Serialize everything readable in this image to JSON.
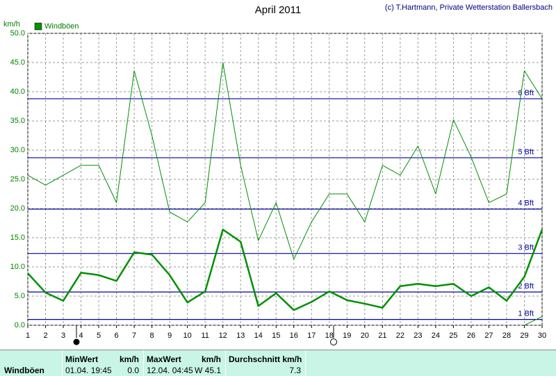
{
  "chart_data": {
    "type": "line",
    "title": "April 2011",
    "subtitle": "(c) T.Hartmann, Private Wetterstation Ballersbach",
    "y_label": "km/h",
    "x": [
      1,
      2,
      3,
      4,
      5,
      6,
      7,
      8,
      9,
      10,
      11,
      12,
      13,
      14,
      15,
      16,
      17,
      18,
      19,
      20,
      21,
      22,
      23,
      24,
      25,
      26,
      27,
      28,
      29,
      30
    ],
    "xlim": [
      1,
      30
    ],
    "xticks": [
      1,
      2,
      3,
      4,
      5,
      6,
      7,
      8,
      9,
      10,
      11,
      12,
      13,
      14,
      15,
      16,
      17,
      18,
      19,
      20,
      21,
      22,
      23,
      24,
      25,
      26,
      27,
      28,
      29,
      30
    ],
    "ylim": [
      0,
      50
    ],
    "yticks": [
      {
        "value": 0,
        "label": "0.0"
      },
      {
        "value": 5,
        "label": "5.0"
      },
      {
        "value": 10,
        "label": "10.0"
      },
      {
        "value": 15,
        "label": "15.0"
      },
      {
        "value": 20,
        "label": "20.0"
      },
      {
        "value": 25,
        "label": "25.0"
      },
      {
        "value": 30,
        "label": "30.0"
      },
      {
        "value": 35,
        "label": "35.0"
      },
      {
        "value": 40,
        "label": "40.0"
      },
      {
        "value": 45,
        "label": "45.0"
      },
      {
        "value": 50,
        "label": "50.0"
      }
    ],
    "grid": true,
    "legend": "top-left",
    "series": [
      {
        "name": "Windböen",
        "color": "#009000",
        "width": 1,
        "values": [
          25.7,
          24.0,
          25.7,
          27.4,
          27.4,
          21.0,
          43.6,
          32.5,
          19.4,
          17.7,
          21.0,
          45.0,
          27.4,
          14.5,
          21.0,
          11.3,
          17.7,
          22.5,
          22.5,
          17.7,
          27.4,
          25.7,
          30.7,
          22.5,
          35.2,
          28.8,
          21.0,
          22.5,
          43.6,
          38.8
        ]
      },
      {
        "color": "#009000",
        "width": 2.5,
        "values": [
          8.9,
          5.6,
          4.2,
          9.0,
          8.6,
          7.6,
          12.5,
          12.1,
          8.6,
          3.9,
          5.8,
          16.4,
          14.3,
          3.3,
          5.5,
          2.6,
          4.0,
          5.8,
          4.3,
          3.7,
          3.0,
          6.7,
          7.1,
          6.7,
          7.1,
          5.0,
          6.5,
          4.2,
          8.3,
          16.4
        ]
      },
      {
        "color": "#009000",
        "width": 1,
        "values": [
          null,
          null,
          null,
          null,
          null,
          null,
          null,
          null,
          null,
          null,
          null,
          null,
          null,
          null,
          null,
          null,
          null,
          null,
          null,
          null,
          null,
          null,
          null,
          null,
          null,
          null,
          null,
          null,
          0.0,
          1.5
        ]
      }
    ],
    "reference_lines": [
      {
        "value": 1.0,
        "label": "1 Bft"
      },
      {
        "value": 5.7,
        "label": "2 Bft"
      },
      {
        "value": 12.3,
        "label": "3 Bft"
      },
      {
        "value": 19.9,
        "label": "4 Bft"
      },
      {
        "value": 28.7,
        "label": "5 Bft"
      },
      {
        "value": 38.8,
        "label": "6 Bft"
      }
    ],
    "reference_color": "#0000a0"
  },
  "summary": {
    "row_label": "Windböen",
    "min": {
      "header": "MinWert",
      "unit": "km/h",
      "time": "01.04. 19:45",
      "value": "0.0"
    },
    "max": {
      "header": "MaxWert",
      "unit": "km/h",
      "time": "12.04. 04:45",
      "value": "W 45.1"
    },
    "avg": {
      "header": "Durchschnitt km/h",
      "value": "7.3"
    }
  }
}
